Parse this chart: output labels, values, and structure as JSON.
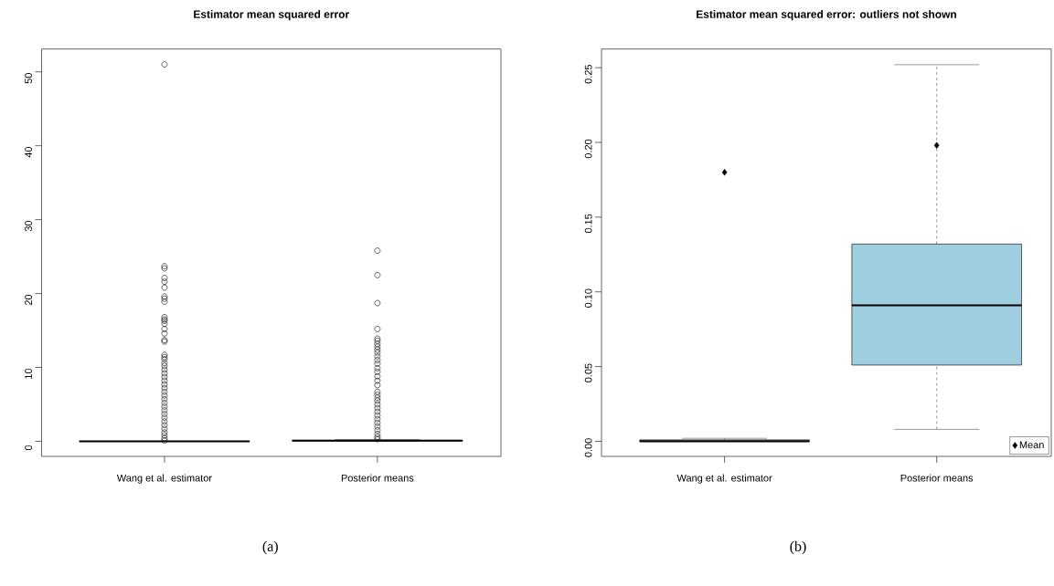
{
  "chart_data": [
    {
      "type": "box",
      "title": "Estimator mean squared error",
      "categories": [
        "Wang et al. estimator",
        "Posterior means"
      ],
      "boxes": [
        {
          "low": 0,
          "q1": 0,
          "median": 0,
          "q3": 0.001,
          "high": 0.002,
          "outliers": [
            51.0,
            23.7,
            23.4,
            22.1,
            21.6,
            20.8,
            19.6,
            19.3,
            18.9,
            16.8,
            16.5,
            16.3,
            15.9,
            15.2,
            14.6,
            13.7,
            13.5,
            11.7,
            11.4,
            11.1,
            10.6,
            10.2,
            9.7,
            9.2,
            8.7,
            8.2,
            7.7,
            7.2,
            6.7,
            6.2,
            5.7,
            5.2,
            4.7,
            4.2,
            3.7,
            3.2,
            2.7,
            2.2,
            1.7,
            1.2,
            0.8,
            0.4,
            0.1
          ]
        },
        {
          "low": 0.008,
          "q1": 0.051,
          "median": 0.091,
          "q3": 0.132,
          "high": 0.252,
          "outliers": [
            25.8,
            22.5,
            18.7,
            15.2,
            13.9,
            13.6,
            13.2,
            12.8,
            12.4,
            12.0,
            11.5,
            11.0,
            10.5,
            9.9,
            9.4,
            8.8,
            8.2,
            7.6,
            6.7,
            6.3,
            5.9,
            5.5,
            5.0,
            4.5,
            4.0,
            3.5,
            3.0,
            2.5,
            2.0,
            1.5,
            1.0,
            0.6,
            0.3
          ]
        }
      ],
      "colors": [
        "#000000",
        "#000000"
      ],
      "line_style": "dashed",
      "ylim": [
        -2.04,
        53.09
      ],
      "yticks": [
        0,
        10,
        20,
        30,
        40,
        50
      ],
      "annotations": [
        "(a)"
      ]
    },
    {
      "type": "box",
      "title": "Estimator mean squared error: outliers not shown",
      "categories": [
        "Wang et al. estimator",
        "Posterior means"
      ],
      "boxes": [
        {
          "low": 0,
          "q1": 0,
          "median": 0,
          "q3": 0.001,
          "high": 0.002
        },
        {
          "low": 0.008,
          "q1": 0.051,
          "median": 0.091,
          "q3": 0.132,
          "high": 0.252
        }
      ],
      "colors": [
        "#ffffff",
        "#9ecee0"
      ],
      "line_style": "dashed",
      "series": [
        {
          "type": "scatter",
          "name": "Mean",
          "values": [
            0.18,
            0.198
          ],
          "color": "#000000",
          "marker": "diamond"
        }
      ],
      "legend": "bottom right",
      "ylim": [
        -0.0101,
        0.2625
      ],
      "yticks": [
        {
          "value": 0,
          "label": "0.00"
        },
        {
          "value": 0.05,
          "label": "0.05"
        },
        {
          "value": 0.1,
          "label": "0.10"
        },
        {
          "value": 0.15,
          "label": "0.15"
        },
        {
          "value": 0.2,
          "label": "0.20"
        },
        {
          "value": 0.25,
          "label": "0.25"
        }
      ],
      "annotations": [
        "(b)"
      ]
    }
  ]
}
